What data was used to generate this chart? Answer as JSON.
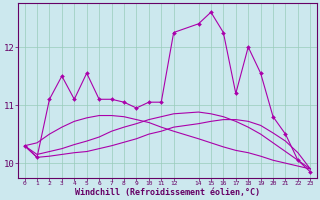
{
  "title": "",
  "xlabel": "Windchill (Refroidissement éolien,°C)",
  "ylabel": "",
  "bg_color": "#cce8ee",
  "line_color": "#aa00aa",
  "grid_color": "#99ccbb",
  "axis_color": "#660066",
  "xlim": [
    -0.5,
    23.5
  ],
  "ylim": [
    9.75,
    12.75
  ],
  "xticks": [
    0,
    1,
    2,
    3,
    4,
    5,
    6,
    7,
    8,
    9,
    10,
    11,
    12,
    14,
    15,
    16,
    17,
    18,
    19,
    20,
    21,
    22,
    23
  ],
  "yticks": [
    10,
    11,
    12
  ],
  "line1_x": [
    0,
    1,
    2,
    3,
    4,
    5,
    6,
    7,
    8,
    9,
    10,
    11,
    12,
    14,
    15,
    16,
    17,
    18,
    19,
    20,
    21,
    22,
    23
  ],
  "line1_y": [
    10.3,
    10.1,
    11.1,
    11.5,
    11.1,
    11.55,
    11.1,
    11.1,
    11.05,
    10.95,
    11.05,
    11.05,
    12.25,
    12.4,
    12.6,
    12.25,
    11.2,
    12.0,
    11.55,
    10.8,
    10.5,
    10.05,
    9.85
  ],
  "line2_x": [
    0,
    1,
    2,
    3,
    4,
    5,
    6,
    7,
    8,
    9,
    10,
    11,
    12,
    14,
    15,
    16,
    17,
    18,
    19,
    20,
    21,
    22,
    23
  ],
  "line2_y": [
    10.3,
    10.35,
    10.5,
    10.62,
    10.72,
    10.78,
    10.82,
    10.82,
    10.8,
    10.75,
    10.7,
    10.62,
    10.55,
    10.42,
    10.35,
    10.28,
    10.22,
    10.18,
    10.12,
    10.05,
    10.0,
    9.95,
    9.9
  ],
  "line3_x": [
    0,
    1,
    2,
    3,
    4,
    5,
    6,
    7,
    8,
    9,
    10,
    11,
    12,
    14,
    15,
    16,
    17,
    18,
    19,
    20,
    21,
    22,
    23
  ],
  "line3_y": [
    10.3,
    10.15,
    10.2,
    10.25,
    10.32,
    10.38,
    10.45,
    10.55,
    10.62,
    10.68,
    10.75,
    10.8,
    10.85,
    10.88,
    10.85,
    10.8,
    10.72,
    10.62,
    10.5,
    10.35,
    10.2,
    10.05,
    9.9
  ],
  "line4_x": [
    0,
    1,
    2,
    3,
    4,
    5,
    6,
    7,
    8,
    9,
    10,
    11,
    12,
    14,
    15,
    16,
    17,
    18,
    19,
    20,
    21,
    22,
    23
  ],
  "line4_y": [
    10.3,
    10.1,
    10.12,
    10.15,
    10.18,
    10.2,
    10.25,
    10.3,
    10.36,
    10.42,
    10.5,
    10.55,
    10.62,
    10.68,
    10.72,
    10.75,
    10.75,
    10.72,
    10.65,
    10.52,
    10.38,
    10.18,
    9.9
  ],
  "marker": "D",
  "markersize": 2.0,
  "linewidth": 0.8
}
